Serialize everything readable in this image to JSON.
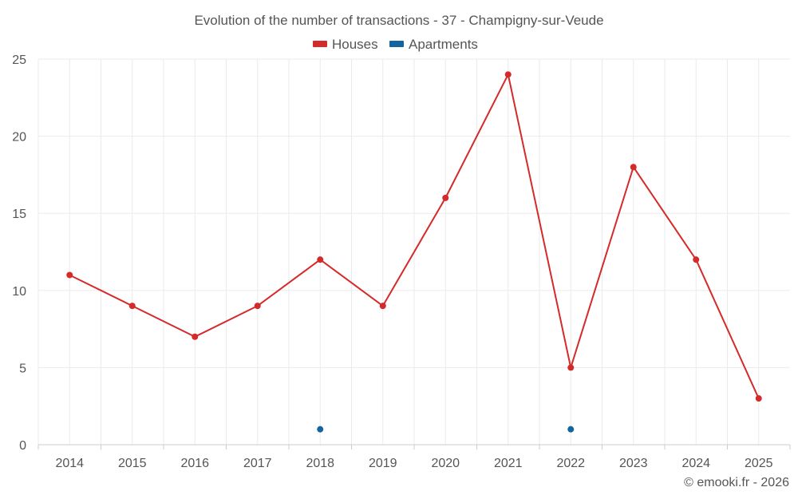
{
  "chart_data": {
    "type": "line",
    "title": "Evolution of the number of transactions - 37 - Champigny-sur-Veude",
    "categories": [
      "2014",
      "2015",
      "2016",
      "2017",
      "2018",
      "2019",
      "2020",
      "2021",
      "2022",
      "2023",
      "2024",
      "2025"
    ],
    "series": [
      {
        "name": "Houses",
        "color": "#d42a2a",
        "values": [
          11,
          9,
          7,
          9,
          12,
          9,
          16,
          24,
          5,
          18,
          12,
          3
        ]
      },
      {
        "name": "Apartments",
        "color": "#1464a0",
        "values": [
          null,
          null,
          null,
          null,
          1,
          null,
          null,
          null,
          1,
          null,
          null,
          null
        ]
      }
    ],
    "ylim": [
      0,
      25
    ],
    "yticks": [
      0,
      5,
      10,
      15,
      20,
      25
    ],
    "xlabel": "",
    "ylabel": "",
    "grid": true,
    "legend": "top-center"
  },
  "credit": "© emooki.fr - 2026"
}
